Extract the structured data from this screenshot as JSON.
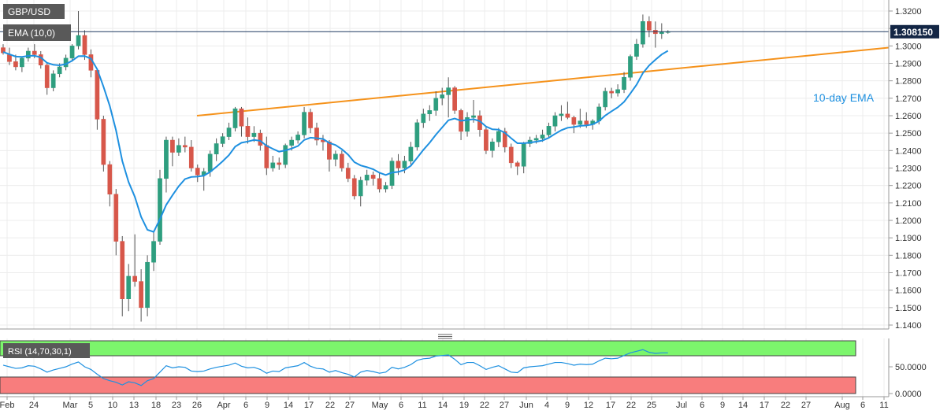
{
  "chart_data": {
    "type": "candlestick",
    "symbol": "GBP/USD",
    "indicator_label": "EMA (10,0)",
    "ema_annotation": "10-day EMA",
    "last_price_label": "1.308150",
    "last_price": 1.30815,
    "price_range": [
      1.13,
      1.325
    ],
    "price_ticks": [
      "1.3200",
      "1.3100",
      "1.3000",
      "1.2900",
      "1.2800",
      "1.2700",
      "1.2600",
      "1.2500",
      "1.2400",
      "1.2300",
      "1.2200",
      "1.2100",
      "1.2000",
      "1.1900",
      "1.1800",
      "1.1700",
      "1.1600",
      "1.1500",
      "1.1400"
    ],
    "x_ticks": [
      "Feb",
      "24",
      "Mar",
      "5",
      "10",
      "13",
      "18",
      "23",
      "26",
      "Apr",
      "6",
      "9",
      "14",
      "17",
      "22",
      "27",
      "May",
      "6",
      "11",
      "14",
      "19",
      "22",
      "27",
      "Jun",
      "4",
      "9",
      "12",
      "17",
      "22",
      "25",
      "Jul",
      "6",
      "9",
      "14",
      "17",
      "22",
      "27",
      "Aug",
      "6",
      "11"
    ],
    "trendline": {
      "start": 1.26,
      "end": 1.299
    },
    "candles": [
      [
        1.299,
        1.301,
        1.295,
        1.296
      ],
      [
        1.295,
        1.299,
        1.289,
        1.291
      ],
      [
        1.291,
        1.295,
        1.286,
        1.288
      ],
      [
        1.288,
        1.294,
        1.285,
        1.293
      ],
      [
        1.293,
        1.299,
        1.291,
        1.297
      ],
      [
        1.297,
        1.301,
        1.293,
        1.295
      ],
      [
        1.295,
        1.297,
        1.287,
        1.289
      ],
      [
        1.289,
        1.29,
        1.272,
        1.276
      ],
      [
        1.276,
        1.286,
        1.274,
        1.284
      ],
      [
        1.284,
        1.29,
        1.282,
        1.288
      ],
      [
        1.288,
        1.295,
        1.286,
        1.293
      ],
      [
        1.293,
        1.301,
        1.291,
        1.3
      ],
      [
        1.3,
        1.32,
        1.298,
        1.306
      ],
      [
        1.306,
        1.309,
        1.292,
        1.295
      ],
      [
        1.295,
        1.298,
        1.282,
        1.286
      ],
      [
        1.286,
        1.287,
        1.252,
        1.258
      ],
      [
        1.258,
        1.26,
        1.228,
        1.232
      ],
      [
        1.232,
        1.234,
        1.208,
        1.215
      ],
      [
        1.215,
        1.218,
        1.18,
        1.188
      ],
      [
        1.188,
        1.191,
        1.145,
        1.155
      ],
      [
        1.155,
        1.175,
        1.148,
        1.168
      ],
      [
        1.168,
        1.192,
        1.162,
        1.165
      ],
      [
        1.165,
        1.172,
        1.142,
        1.15
      ],
      [
        1.15,
        1.18,
        1.145,
        1.176
      ],
      [
        1.176,
        1.193,
        1.171,
        1.188
      ],
      [
        1.188,
        1.229,
        1.186,
        1.224
      ],
      [
        1.224,
        1.248,
        1.216,
        1.246
      ],
      [
        1.246,
        1.248,
        1.231,
        1.239
      ],
      [
        1.239,
        1.247,
        1.237,
        1.243
      ],
      [
        1.243,
        1.248,
        1.239,
        1.242
      ],
      [
        1.242,
        1.246,
        1.228,
        1.23
      ],
      [
        1.23,
        1.232,
        1.222,
        1.226
      ],
      [
        1.226,
        1.23,
        1.217,
        1.228
      ],
      [
        1.228,
        1.24,
        1.225,
        1.238
      ],
      [
        1.238,
        1.247,
        1.234,
        1.244
      ],
      [
        1.244,
        1.25,
        1.242,
        1.248
      ],
      [
        1.248,
        1.256,
        1.246,
        1.253
      ],
      [
        1.253,
        1.265,
        1.251,
        1.264
      ],
      [
        1.264,
        1.265,
        1.248,
        1.254
      ],
      [
        1.254,
        1.259,
        1.244,
        1.248
      ],
      [
        1.248,
        1.254,
        1.245,
        1.25
      ],
      [
        1.25,
        1.252,
        1.24,
        1.243
      ],
      [
        1.243,
        1.248,
        1.226,
        1.23
      ],
      [
        1.23,
        1.237,
        1.228,
        1.233
      ],
      [
        1.233,
        1.236,
        1.229,
        1.232
      ],
      [
        1.232,
        1.244,
        1.23,
        1.243
      ],
      [
        1.243,
        1.248,
        1.24,
        1.246
      ],
      [
        1.246,
        1.251,
        1.244,
        1.249
      ],
      [
        1.249,
        1.265,
        1.247,
        1.262
      ],
      [
        1.262,
        1.264,
        1.25,
        1.253
      ],
      [
        1.253,
        1.256,
        1.243,
        1.246
      ],
      [
        1.246,
        1.249,
        1.24,
        1.245
      ],
      [
        1.245,
        1.246,
        1.228,
        1.235
      ],
      [
        1.235,
        1.24,
        1.231,
        1.238
      ],
      [
        1.238,
        1.24,
        1.228,
        1.23
      ],
      [
        1.23,
        1.233,
        1.222,
        1.224
      ],
      [
        1.224,
        1.226,
        1.212,
        1.214
      ],
      [
        1.214,
        1.225,
        1.208,
        1.223
      ],
      [
        1.223,
        1.229,
        1.22,
        1.226
      ],
      [
        1.226,
        1.228,
        1.22,
        1.224
      ],
      [
        1.224,
        1.227,
        1.216,
        1.218
      ],
      [
        1.218,
        1.222,
        1.216,
        1.22
      ],
      [
        1.22,
        1.236,
        1.218,
        1.234
      ],
      [
        1.234,
        1.238,
        1.226,
        1.23
      ],
      [
        1.23,
        1.237,
        1.227,
        1.234
      ],
      [
        1.234,
        1.245,
        1.232,
        1.242
      ],
      [
        1.242,
        1.258,
        1.24,
        1.256
      ],
      [
        1.256,
        1.264,
        1.253,
        1.261
      ],
      [
        1.261,
        1.266,
        1.257,
        1.263
      ],
      [
        1.263,
        1.274,
        1.26,
        1.27
      ],
      [
        1.27,
        1.276,
        1.266,
        1.272
      ],
      [
        1.272,
        1.282,
        1.259,
        1.276
      ],
      [
        1.276,
        1.277,
        1.261,
        1.263
      ],
      [
        1.263,
        1.264,
        1.246,
        1.251
      ],
      [
        1.251,
        1.262,
        1.248,
        1.259
      ],
      [
        1.259,
        1.269,
        1.256,
        1.26
      ],
      [
        1.26,
        1.263,
        1.248,
        1.252
      ],
      [
        1.252,
        1.254,
        1.238,
        1.24
      ],
      [
        1.24,
        1.247,
        1.236,
        1.245
      ],
      [
        1.245,
        1.253,
        1.242,
        1.251
      ],
      [
        1.251,
        1.253,
        1.239,
        1.242
      ],
      [
        1.242,
        1.244,
        1.23,
        1.233
      ],
      [
        1.233,
        1.234,
        1.226,
        1.231
      ],
      [
        1.231,
        1.245,
        1.227,
        1.244
      ],
      [
        1.244,
        1.248,
        1.242,
        1.246
      ],
      [
        1.246,
        1.249,
        1.244,
        1.247
      ],
      [
        1.247,
        1.252,
        1.245,
        1.249
      ],
      [
        1.249,
        1.256,
        1.247,
        1.254
      ],
      [
        1.254,
        1.262,
        1.251,
        1.26
      ],
      [
        1.26,
        1.266,
        1.257,
        1.261
      ],
      [
        1.261,
        1.268,
        1.258,
        1.259
      ],
      [
        1.259,
        1.26,
        1.25,
        1.255
      ],
      [
        1.255,
        1.264,
        1.253,
        1.257
      ],
      [
        1.257,
        1.262,
        1.253,
        1.255
      ],
      [
        1.255,
        1.258,
        1.252,
        1.257
      ],
      [
        1.257,
        1.267,
        1.255,
        1.265
      ],
      [
        1.265,
        1.276,
        1.263,
        1.274
      ],
      [
        1.274,
        1.276,
        1.27,
        1.273
      ],
      [
        1.273,
        1.278,
        1.271,
        1.275
      ],
      [
        1.275,
        1.285,
        1.273,
        1.282
      ],
      [
        1.282,
        1.295,
        1.28,
        1.294
      ],
      [
        1.294,
        1.304,
        1.292,
        1.301
      ],
      [
        1.301,
        1.318,
        1.299,
        1.314
      ],
      [
        1.314,
        1.317,
        1.305,
        1.309
      ],
      [
        1.309,
        1.314,
        1.299,
        1.307
      ],
      [
        1.307,
        1.313,
        1.304,
        1.308
      ],
      [
        1.308,
        1.309,
        1.307,
        1.30815
      ]
    ],
    "ema": [
      1.2965,
      1.2952,
      1.2939,
      1.2937,
      1.2943,
      1.2944,
      1.2934,
      1.2903,
      1.2892,
      1.2889,
      1.2896,
      1.2915,
      1.2941,
      1.2942,
      1.2927,
      1.2866,
      1.2766,
      1.2656,
      1.2516,
      1.234,
      1.222,
      1.2135,
      1.202,
      1.1946,
      1.1934,
      1.2007,
      1.2089,
      1.2144,
      1.2196,
      1.2237,
      1.2249,
      1.2251,
      1.2256,
      1.2278,
      1.2307,
      1.2339,
      1.2374,
      1.2423,
      1.2445,
      1.2452,
      1.2461,
      1.2456,
      1.2428,
      1.241,
      1.2394,
      1.2401,
      1.2412,
      1.2426,
      1.2461,
      1.2474,
      1.2471,
      1.2467,
      1.2444,
      1.2432,
      1.2408,
      1.2377,
      1.2334,
      1.2315,
      1.2305,
      1.2293,
      1.2273,
      1.226,
      1.2274,
      1.2278,
      1.2289,
      1.2313,
      1.2358,
      1.2404,
      1.2445,
      1.2491,
      1.2533,
      1.2574,
      1.2584,
      1.2571,
      1.2575,
      1.258,
      1.2569,
      1.2538,
      1.2522,
      1.252,
      1.2502,
      1.2471,
      1.2442,
      1.2442,
      1.2446,
      1.2451,
      1.2458,
      1.2473,
      1.2496,
      1.2517,
      1.2531,
      1.2535,
      1.2542,
      1.2544,
      1.255,
      1.2569,
      1.2601,
      1.2625,
      1.2648,
      1.2679,
      1.2727,
      1.2778,
      1.2844,
      1.2888,
      1.2921,
      1.2951,
      1.2972
    ],
    "rsi": {
      "label": "RSI (14,70,30,1)",
      "ticks": [
        "50.0000",
        "0.0000"
      ],
      "upper": 70,
      "lower": 30,
      "values": [
        53,
        50,
        47,
        48,
        52,
        51,
        46,
        40,
        44,
        47,
        50,
        55,
        59,
        50,
        45,
        36,
        28,
        24,
        21,
        16,
        22,
        20,
        15,
        24,
        28,
        40,
        52,
        48,
        50,
        49,
        42,
        41,
        42,
        46,
        49,
        51,
        53,
        57,
        51,
        48,
        49,
        45,
        38,
        42,
        41,
        48,
        50,
        52,
        58,
        51,
        47,
        46,
        40,
        43,
        39,
        36,
        31,
        40,
        43,
        41,
        38,
        40,
        49,
        46,
        49,
        54,
        62,
        65,
        66,
        70,
        71,
        72,
        64,
        54,
        58,
        58,
        52,
        45,
        49,
        52,
        46,
        40,
        39,
        48,
        50,
        51,
        52,
        55,
        58,
        58,
        56,
        53,
        55,
        54,
        55,
        61,
        66,
        65,
        66,
        71,
        76,
        79,
        82,
        77,
        75,
        76,
        76
      ]
    }
  }
}
